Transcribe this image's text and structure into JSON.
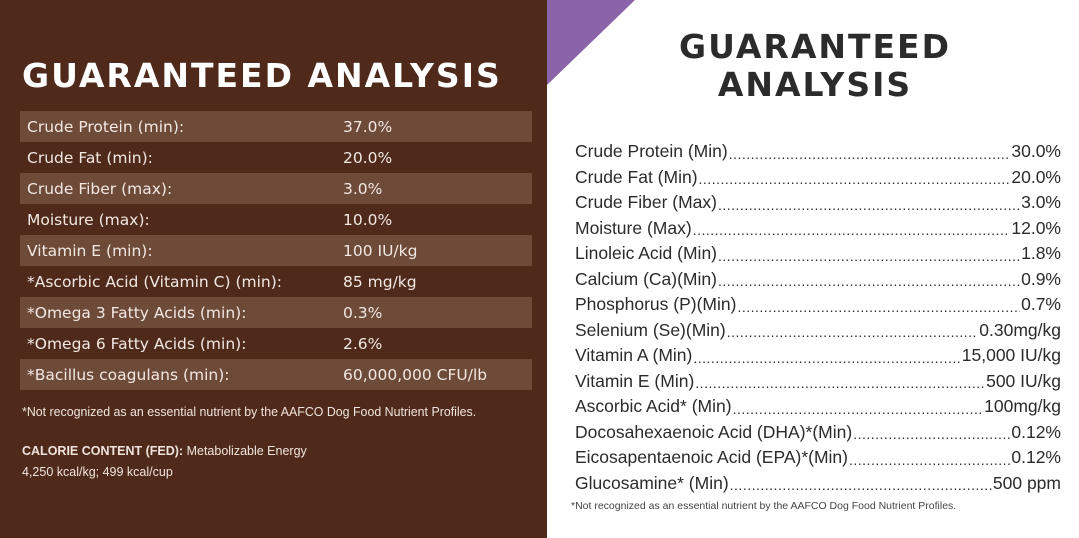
{
  "left": {
    "title": "GUARANTEED ANALYSIS",
    "rows": [
      {
        "label": "Crude Protein (min):",
        "value": "37.0%"
      },
      {
        "label": "Crude Fat (min):",
        "value": "20.0%"
      },
      {
        "label": "Crude Fiber (max):",
        "value": "3.0%"
      },
      {
        "label": "Moisture (max):",
        "value": "10.0%"
      },
      {
        "label": "Vitamin E (min):",
        "value": "100 IU/kg"
      },
      {
        "label": "*Ascorbic Acid (Vitamin C) (min):",
        "value": "85 mg/kg"
      },
      {
        "label": "*Omega 3 Fatty Acids (min):",
        "value": "0.3%"
      },
      {
        "label": "*Omega 6 Fatty Acids (min):",
        "value": "2.6%"
      },
      {
        "label": "*Bacillus coagulans (min):",
        "value": "60,000,000 CFU/lb"
      }
    ],
    "footnote": "*Not recognized as an essential nutrient by the AAFCO Dog Food Nutrient Profiles.",
    "calorie_label": "CALORIE CONTENT (FED):",
    "calorie_line1": " Metabolizable Energy",
    "calorie_line2": "4,250 kcal/kg; 499 kcal/cup",
    "colors": {
      "background": "#4f2a1b",
      "row_shade": "#6e4a39"
    }
  },
  "right": {
    "title_line1": "GUARANTEED",
    "title_line2": "ANALYSIS",
    "rows": [
      {
        "label": "Crude Protein (Min)",
        "value": "30.0%"
      },
      {
        "label": "Crude Fat (Min)",
        "value": "20.0%"
      },
      {
        "label": "Crude Fiber (Max)",
        "value": "3.0%"
      },
      {
        "label": "Moisture (Max)",
        "value": "12.0%"
      },
      {
        "label": "Linoleic Acid (Min)",
        "value": "1.8%"
      },
      {
        "label": "Calcium (Ca)(Min)",
        "value": "0.9%"
      },
      {
        "label": "Phosphorus (P)(Min)",
        "value": "0.7%"
      },
      {
        "label": "Selenium (Se)(Min)",
        "value": "0.30mg/kg"
      },
      {
        "label": "Vitamin A (Min)",
        "value": "15,000 IU/kg"
      },
      {
        "label": "Vitamin E (Min)",
        "value": "500 IU/kg"
      },
      {
        "label": "Ascorbic Acid* (Min)",
        "value": "100mg/kg"
      },
      {
        "label": "Docosahexaenoic Acid (DHA)*(Min)",
        "value": "0.12%"
      },
      {
        "label": "Eicosapentaenoic Acid (EPA)*(Min)",
        "value": "0.12%"
      },
      {
        "label": "Glucosamine* (Min)",
        "value": "500 ppm"
      }
    ],
    "footnote": "*Not recognized as an essential nutrient by the AAFCO Dog Food Nutrient Profiles.",
    "colors": {
      "accent": "#8a63a8",
      "text": "#2b2b2b"
    }
  }
}
